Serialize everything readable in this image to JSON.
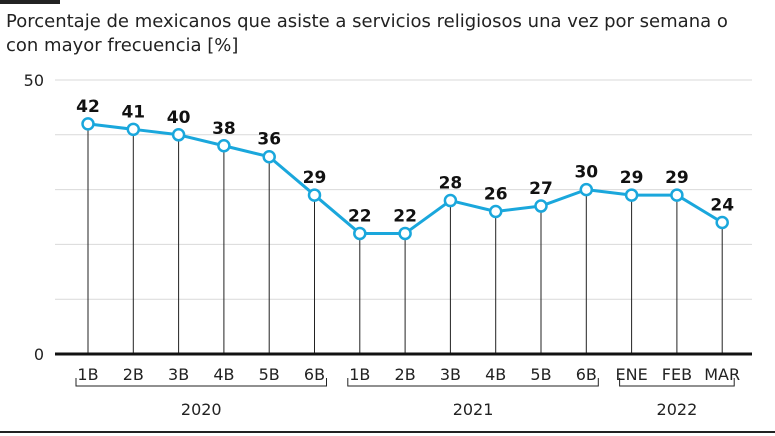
{
  "title": "Porcentaje de mexicanos que asiste a servicios religiosos una vez por semana o con mayor frecuencia [%]",
  "chart_data": {
    "type": "line",
    "title": "Porcentaje de mexicanos que asiste a servicios religiosos una vez por semana o con mayor frecuencia [%]",
    "categories": [
      "1B",
      "2B",
      "3B",
      "4B",
      "5B",
      "6B",
      "1B",
      "2B",
      "3B",
      "4B",
      "5B",
      "6B",
      "ENE",
      "FEB",
      "MAR"
    ],
    "values": [
      42,
      41,
      40,
      38,
      36,
      29,
      22,
      22,
      28,
      26,
      27,
      30,
      29,
      29,
      24
    ],
    "groups": [
      {
        "label": "2020",
        "start": 0,
        "end": 5
      },
      {
        "label": "2021",
        "start": 6,
        "end": 11
      },
      {
        "label": "2022",
        "start": 12,
        "end": 14
      }
    ],
    "y_ticks": [
      0,
      50
    ],
    "ylim": [
      0,
      50
    ],
    "grid": true,
    "colors": {
      "line": "#1aa7dc",
      "marker_fill": "#ffffff",
      "grid": "#d9d9d9",
      "drop": "#222222"
    }
  }
}
